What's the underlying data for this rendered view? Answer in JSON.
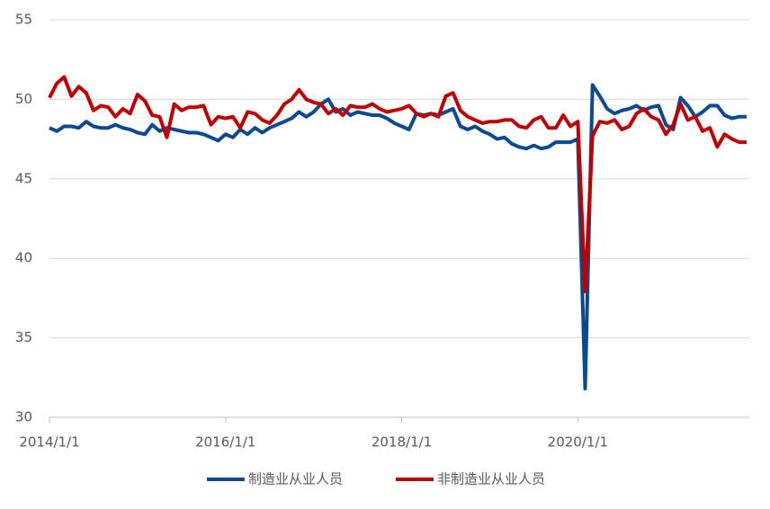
{
  "chart_data": {
    "type": "line",
    "x": [
      "2014/1/1",
      "2014/2/1",
      "2014/3/1",
      "2014/4/1",
      "2014/5/1",
      "2014/6/1",
      "2014/7/1",
      "2014/8/1",
      "2014/9/1",
      "2014/10/1",
      "2014/11/1",
      "2014/12/1",
      "2015/1/1",
      "2015/2/1",
      "2015/3/1",
      "2015/4/1",
      "2015/5/1",
      "2015/6/1",
      "2015/7/1",
      "2015/8/1",
      "2015/9/1",
      "2015/10/1",
      "2015/11/1",
      "2015/12/1",
      "2016/1/1",
      "2016/2/1",
      "2016/3/1",
      "2016/4/1",
      "2016/5/1",
      "2016/6/1",
      "2016/7/1",
      "2016/8/1",
      "2016/9/1",
      "2016/10/1",
      "2016/11/1",
      "2016/12/1",
      "2017/1/1",
      "2017/2/1",
      "2017/3/1",
      "2017/4/1",
      "2017/5/1",
      "2017/6/1",
      "2017/7/1",
      "2017/8/1",
      "2017/9/1",
      "2017/10/1",
      "2017/11/1",
      "2017/12/1",
      "2018/1/1",
      "2018/2/1",
      "2018/3/1",
      "2018/4/1",
      "2018/5/1",
      "2018/6/1",
      "2018/7/1",
      "2018/8/1",
      "2018/9/1",
      "2018/10/1",
      "2018/11/1",
      "2018/12/1",
      "2019/1/1",
      "2019/2/1",
      "2019/3/1",
      "2019/4/1",
      "2019/5/1",
      "2019/6/1",
      "2019/7/1",
      "2019/8/1",
      "2019/9/1",
      "2019/10/1",
      "2019/11/1",
      "2019/12/1",
      "2020/1/1",
      "2020/2/1",
      "2020/3/1",
      "2020/4/1",
      "2020/5/1",
      "2020/6/1",
      "2020/7/1",
      "2020/8/1",
      "2020/9/1",
      "2020/10/1",
      "2020/11/1",
      "2020/12/1",
      "2021/1/1",
      "2021/2/1",
      "2021/3/1",
      "2021/4/1",
      "2021/5/1",
      "2021/6/1",
      "2021/7/1",
      "2021/8/1",
      "2021/9/1",
      "2021/10/1",
      "2021/11/1",
      "2021/12/1"
    ],
    "series": [
      {
        "name": "制造业从业人员",
        "color": "#0b4a93",
        "values": [
          48.2,
          48.0,
          48.3,
          48.3,
          48.2,
          48.6,
          48.3,
          48.2,
          48.2,
          48.4,
          48.2,
          48.1,
          47.9,
          47.8,
          48.4,
          48.0,
          48.2,
          48.1,
          48.0,
          47.9,
          47.9,
          47.8,
          47.6,
          47.4,
          47.8,
          47.6,
          48.1,
          47.8,
          48.2,
          47.9,
          48.2,
          48.4,
          48.6,
          48.8,
          49.2,
          48.9,
          49.2,
          49.7,
          50.0,
          49.2,
          49.4,
          49.0,
          49.2,
          49.1,
          49.0,
          49.0,
          48.8,
          48.5,
          48.3,
          48.1,
          49.1,
          49.0,
          49.1,
          49.0,
          49.2,
          49.4,
          48.3,
          48.1,
          48.3,
          48.0,
          47.8,
          47.5,
          47.6,
          47.2,
          47.0,
          46.9,
          47.1,
          46.9,
          47.0,
          47.3,
          47.3,
          47.3,
          47.5,
          31.8,
          50.9,
          50.2,
          49.4,
          49.1,
          49.3,
          49.4,
          49.6,
          49.3,
          49.5,
          49.6,
          48.4,
          48.1,
          50.1,
          49.6,
          48.9,
          49.2,
          49.6,
          49.6,
          49.0,
          48.8,
          48.9,
          48.9
        ]
      },
      {
        "name": "非制造业从业人员",
        "color": "#c00000",
        "values": [
          50.1,
          51.0,
          51.4,
          50.2,
          50.8,
          50.4,
          49.3,
          49.6,
          49.5,
          48.9,
          49.4,
          49.1,
          50.3,
          49.9,
          49.0,
          48.9,
          47.6,
          49.7,
          49.3,
          49.5,
          49.5,
          49.6,
          48.4,
          48.9,
          48.8,
          48.9,
          48.2,
          49.2,
          49.1,
          48.7,
          48.5,
          49.0,
          49.7,
          50.0,
          50.6,
          50.0,
          49.8,
          49.7,
          49.1,
          49.4,
          49.0,
          49.6,
          49.5,
          49.5,
          49.7,
          49.4,
          49.2,
          49.3,
          49.4,
          49.6,
          49.1,
          48.9,
          49.1,
          48.9,
          50.2,
          50.4,
          49.3,
          48.9,
          48.7,
          48.5,
          48.6,
          48.6,
          48.7,
          48.7,
          48.3,
          48.2,
          48.7,
          48.9,
          48.2,
          48.2,
          49.0,
          48.3,
          48.6,
          37.9,
          47.7,
          48.6,
          48.5,
          48.7,
          48.1,
          48.3,
          49.1,
          49.4,
          48.9,
          48.7,
          47.8,
          48.4,
          49.7,
          48.7,
          48.9,
          48.0,
          48.2,
          47.0,
          47.8,
          47.5,
          47.3,
          47.3
        ]
      }
    ],
    "xlim": [
      "2014/1/1",
      "2021/12/1"
    ],
    "xticks": [
      "2014/1/1",
      "2016/1/1",
      "2018/1/1",
      "2020/1/1"
    ],
    "ylim": [
      30,
      55
    ],
    "yticks": [
      30,
      35,
      40,
      45,
      50,
      55
    ],
    "grid": true,
    "legend": "bottom"
  }
}
